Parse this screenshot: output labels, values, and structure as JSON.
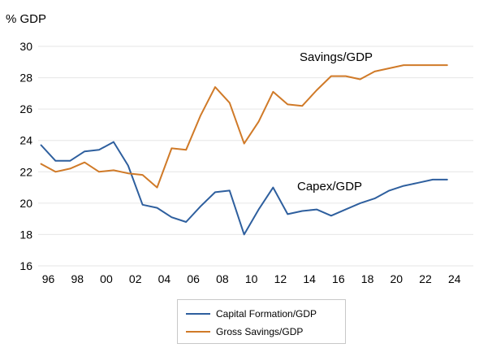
{
  "chart_data": {
    "type": "line",
    "unit_label": "% GDP",
    "ylim": [
      16,
      30
    ],
    "yticks": [
      16,
      18,
      20,
      22,
      24,
      26,
      28,
      30
    ],
    "xlim": [
      1995.3,
      2025.3
    ],
    "xticks": [
      {
        "year": 1996,
        "label": "96"
      },
      {
        "year": 1998,
        "label": "98"
      },
      {
        "year": 2000,
        "label": "00"
      },
      {
        "year": 2002,
        "label": "02"
      },
      {
        "year": 2004,
        "label": "04"
      },
      {
        "year": 2006,
        "label": "06"
      },
      {
        "year": 2008,
        "label": "08"
      },
      {
        "year": 2010,
        "label": "10"
      },
      {
        "year": 2012,
        "label": "12"
      },
      {
        "year": 2014,
        "label": "14"
      },
      {
        "year": 2016,
        "label": "16"
      },
      {
        "year": 2018,
        "label": "18"
      },
      {
        "year": 2020,
        "label": "20"
      },
      {
        "year": 2022,
        "label": "22"
      },
      {
        "year": 2024,
        "label": "24"
      }
    ],
    "grid": "horizontal",
    "legend_position": "bottom",
    "series": [
      {
        "name": "Capital Formation/GDP",
        "color": "#2e5f9e",
        "annotation": "Capex/GDP",
        "x": [
          1995.5,
          1996.5,
          1997.5,
          1998.5,
          1999.5,
          2000.5,
          2001.5,
          2002.5,
          2003.5,
          2004.5,
          2005.5,
          2006.5,
          2007.5,
          2008.5,
          2009.5,
          2010.5,
          2011.5,
          2012.5,
          2013.5,
          2014.5,
          2015.5,
          2016.5,
          2017.5,
          2018.5,
          2019.5,
          2020.5,
          2021.5,
          2022.5,
          2023.5
        ],
        "values": [
          23.7,
          22.7,
          22.7,
          23.3,
          23.4,
          23.9,
          22.4,
          19.9,
          19.7,
          19.1,
          18.8,
          19.8,
          20.7,
          20.8,
          18.0,
          19.6,
          21.0,
          19.3,
          19.5,
          19.6,
          19.2,
          19.6,
          20.0,
          20.3,
          20.8,
          21.1,
          21.3,
          21.5,
          21.5
        ]
      },
      {
        "name": "Gross Savings/GDP",
        "color": "#d07a28",
        "annotation": "Savings/GDP",
        "x": [
          1995.5,
          1996.5,
          1997.5,
          1998.5,
          1999.5,
          2000.5,
          2001.5,
          2002.5,
          2003.5,
          2004.5,
          2005.5,
          2006.5,
          2007.5,
          2008.5,
          2009.5,
          2010.5,
          2011.5,
          2012.5,
          2013.5,
          2014.5,
          2015.5,
          2016.5,
          2017.5,
          2018.5,
          2019.5,
          2020.5,
          2021.5,
          2022.5,
          2023.5
        ],
        "values": [
          22.5,
          22.0,
          22.2,
          22.6,
          22.0,
          22.1,
          21.9,
          21.8,
          21.0,
          23.5,
          23.4,
          25.6,
          27.4,
          26.4,
          23.8,
          25.2,
          27.1,
          26.3,
          26.2,
          27.2,
          28.1,
          28.1,
          27.9,
          28.4,
          28.6,
          28.8,
          28.8,
          28.8,
          28.8
        ]
      }
    ]
  }
}
